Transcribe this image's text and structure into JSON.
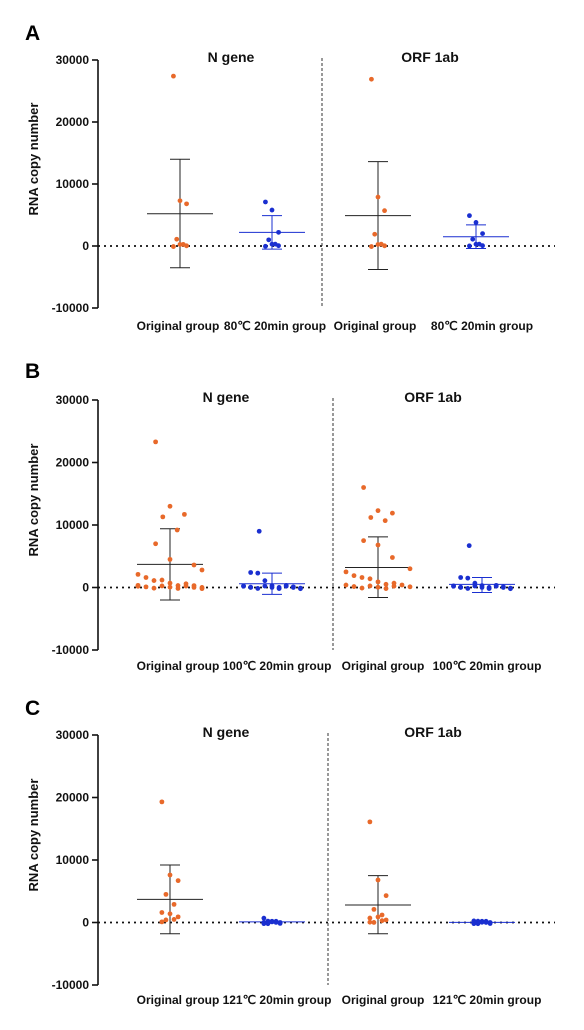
{
  "colors": {
    "original": "#E8692A",
    "heated": "#1A2FD0",
    "axis": "#111111",
    "error_bar_original": "#222222",
    "error_bar_heated": "#1A2FD0"
  },
  "chart_data": [
    {
      "type": "scatter",
      "panel_letter": "A",
      "gene_labels": [
        "N gene",
        "ORF 1ab"
      ],
      "categories": [
        "Original group",
        "80℃ 20min group",
        "Original group",
        "80℃ 20min group"
      ],
      "ylabel": "RNA copy number",
      "ylim": [
        -10000,
        30000
      ],
      "yticks": [
        -10000,
        0,
        10000,
        20000,
        30000
      ],
      "reference_line_y": 0,
      "series": [
        {
          "gene": "N gene",
          "group": "original",
          "mean": 5200,
          "sd_low": -3500,
          "sd_high": 14000,
          "points": [
            27400,
            7300,
            6800,
            900,
            250,
            100,
            50,
            30
          ]
        },
        {
          "gene": "N gene",
          "group": "heated",
          "mean": 2200,
          "sd_low": -500,
          "sd_high": 4900,
          "points": [
            7100,
            5800,
            2200,
            800,
            300,
            150,
            100,
            50
          ]
        },
        {
          "gene": "ORF 1ab",
          "group": "original",
          "mean": 4900,
          "sd_low": -3800,
          "sd_high": 13600,
          "points": [
            26900,
            7900,
            5700,
            1900,
            300,
            100,
            50,
            30
          ]
        },
        {
          "gene": "ORF 1ab",
          "group": "heated",
          "mean": 1500,
          "sd_low": -400,
          "sd_high": 3400,
          "points": [
            4900,
            3800,
            2000,
            900,
            300,
            200,
            100,
            50
          ]
        }
      ]
    },
    {
      "type": "scatter",
      "panel_letter": "B",
      "gene_labels": [
        "N gene",
        "ORF 1ab"
      ],
      "categories": [
        "Original group",
        "100℃ 20min group",
        "Original group",
        "100℃ 20min group"
      ],
      "ylabel": "RNA copy number",
      "ylim": [
        -10000,
        30000
      ],
      "yticks": [
        -10000,
        0,
        10000,
        20000,
        30000
      ],
      "reference_line_y": 0,
      "series": [
        {
          "gene": "N gene",
          "group": "original",
          "mean": 3700,
          "sd_low": -2000,
          "sd_high": 9400,
          "points": [
            23300,
            13000,
            11700,
            11300,
            9200,
            7000,
            4500,
            3600,
            2800,
            2100,
            1600,
            1300,
            1000,
            700,
            500,
            400,
            300,
            200,
            150,
            100,
            80,
            60,
            50,
            40,
            30,
            20,
            10,
            5
          ]
        },
        {
          "gene": "N gene",
          "group": "heated",
          "mean": 600,
          "sd_low": -1100,
          "sd_high": 2300,
          "points": [
            9000,
            2400,
            2300,
            900,
            300,
            200,
            150,
            100,
            80,
            60,
            50,
            40,
            30,
            20,
            15,
            10,
            8,
            5,
            3,
            2
          ]
        },
        {
          "gene": "ORF 1ab",
          "group": "original",
          "mean": 3200,
          "sd_low": -1600,
          "sd_high": 8100,
          "points": [
            16000,
            12300,
            11900,
            11200,
            10700,
            7500,
            6800,
            4800,
            3000,
            2500,
            1900,
            1600,
            1200,
            900,
            700,
            500,
            400,
            300,
            200,
            150,
            100,
            60,
            40,
            20,
            10
          ]
        },
        {
          "gene": "ORF 1ab",
          "group": "heated",
          "mean": 500,
          "sd_low": -800,
          "sd_high": 1600,
          "points": [
            6700,
            1600,
            1500,
            500,
            300,
            200,
            150,
            100,
            80,
            60,
            50,
            40,
            30,
            20,
            15,
            10,
            8,
            5,
            3,
            2
          ]
        }
      ]
    },
    {
      "type": "scatter",
      "panel_letter": "C",
      "gene_labels": [
        "N gene",
        "ORF 1ab"
      ],
      "categories": [
        "Original group",
        "121℃ 20min group",
        "Original group",
        "121℃ 20min group"
      ],
      "ylabel": "RNA copy number",
      "ylim": [
        -10000,
        30000
      ],
      "yticks": [
        -10000,
        0,
        10000,
        20000,
        30000
      ],
      "reference_line_y": 0,
      "series": [
        {
          "gene": "N gene",
          "group": "original",
          "mean": 3700,
          "sd_low": -1800,
          "sd_high": 9200,
          "points": [
            19300,
            7600,
            6700,
            4500,
            2900,
            1600,
            1200,
            900,
            600,
            300,
            100
          ]
        },
        {
          "gene": "N gene",
          "group": "heated",
          "mean": 100,
          "sd_low": 0,
          "sd_high": 200,
          "points": [
            500,
            100,
            50,
            30,
            20,
            10,
            10,
            5,
            5,
            2,
            0
          ]
        },
        {
          "gene": "ORF 1ab",
          "group": "original",
          "mean": 2800,
          "sd_low": -1800,
          "sd_high": 7500,
          "points": [
            16100,
            6800,
            4300,
            2100,
            1200,
            900,
            700,
            400,
            200,
            100,
            50
          ]
        },
        {
          "gene": "ORF 1ab",
          "group": "heated",
          "mean": 20,
          "sd_low": 0,
          "sd_high": 50,
          "points": [
            60,
            40,
            30,
            20,
            10,
            10,
            5,
            5,
            2,
            1,
            0
          ]
        }
      ]
    }
  ]
}
